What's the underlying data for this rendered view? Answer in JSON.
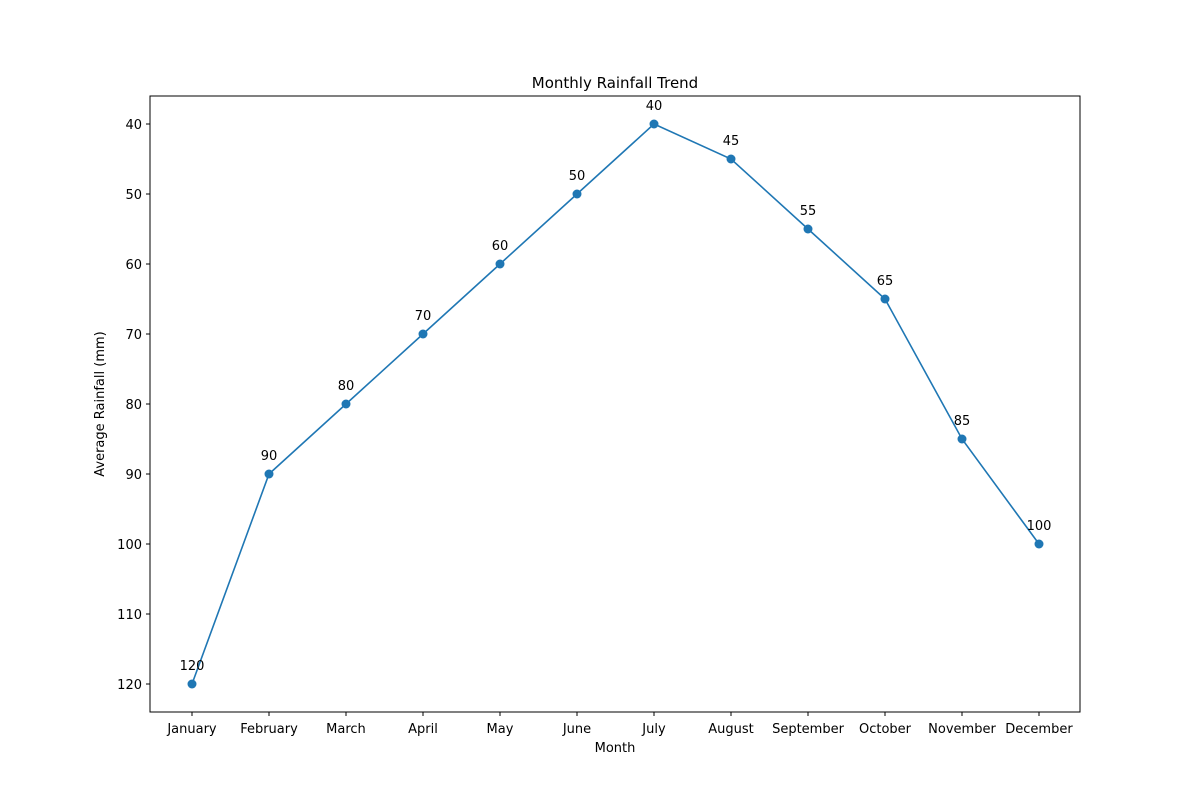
{
  "chart_data": {
    "type": "line",
    "title": "Monthly Rainfall Trend",
    "xlabel": "Month",
    "ylabel": "Average Rainfall (mm)",
    "categories": [
      "January",
      "February",
      "March",
      "April",
      "May",
      "June",
      "July",
      "August",
      "September",
      "October",
      "November",
      "December"
    ],
    "series": [
      {
        "values": [
          120,
          90,
          80,
          70,
          60,
          50,
          40,
          45,
          55,
          65,
          85,
          100
        ],
        "color": "#1f77b4"
      }
    ],
    "data_labels": [
      "120",
      "90",
      "80",
      "70",
      "60",
      "50",
      "40",
      "45",
      "55",
      "65",
      "85",
      "100"
    ],
    "ylim": [
      124,
      36
    ],
    "y_inverted": true,
    "yticks": [
      40,
      50,
      60,
      70,
      80,
      90,
      100,
      110,
      120
    ],
    "ytick_labels": [
      "40",
      "50",
      "60",
      "70",
      "80",
      "90",
      "100",
      "110",
      "120"
    ],
    "grid": false,
    "marker": "circle"
  }
}
